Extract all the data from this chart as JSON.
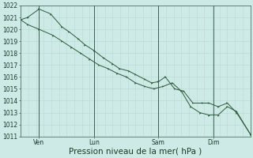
{
  "xlabel": "Pression niveau de la mer( hPa )",
  "ylim": [
    1011,
    1022
  ],
  "xlim": [
    0,
    100
  ],
  "bg_color": "#ceeae6",
  "grid_color_minor": "#b8d8d4",
  "grid_color_major": "#98c0bc",
  "line_color": "#2a5c38",
  "sep_color": "#3a6050",
  "xtick_positions": [
    8,
    32,
    60,
    84
  ],
  "xtick_labels": [
    "Ven",
    "Lun",
    "Sam",
    "Dim"
  ],
  "ytick_positions": [
    1011,
    1012,
    1013,
    1014,
    1015,
    1016,
    1017,
    1018,
    1019,
    1020,
    1021,
    1022
  ],
  "vline_positions": [
    8,
    32,
    60,
    84
  ],
  "line1_x": [
    0,
    3,
    8,
    13,
    18,
    21,
    25,
    28,
    32,
    36,
    40,
    43,
    47,
    50,
    54,
    57,
    60,
    63,
    67,
    71,
    75,
    79,
    82,
    86,
    90,
    94,
    100
  ],
  "line1_y": [
    1020.8,
    1021.0,
    1021.7,
    1021.3,
    1020.2,
    1019.8,
    1019.2,
    1018.7,
    1018.2,
    1017.6,
    1017.1,
    1016.7,
    1016.5,
    1016.2,
    1015.8,
    1015.5,
    1015.6,
    1016.0,
    1015.0,
    1014.8,
    1013.8,
    1013.8,
    1013.8,
    1013.5,
    1013.8,
    1013.0,
    1011.2
  ],
  "line2_x": [
    0,
    3,
    8,
    14,
    18,
    22,
    26,
    30,
    34,
    38,
    42,
    46,
    50,
    54,
    58,
    62,
    66,
    70,
    74,
    78,
    82,
    86,
    90,
    94,
    100
  ],
  "line2_y": [
    1020.8,
    1020.4,
    1020.0,
    1019.5,
    1019.0,
    1018.5,
    1018.0,
    1017.5,
    1017.0,
    1016.7,
    1016.3,
    1016.0,
    1015.5,
    1015.2,
    1015.0,
    1015.2,
    1015.5,
    1014.8,
    1013.5,
    1013.0,
    1012.8,
    1012.8,
    1013.5,
    1013.1,
    1011.2
  ],
  "tick_fontsize": 5.5,
  "xlabel_fontsize": 7.5
}
